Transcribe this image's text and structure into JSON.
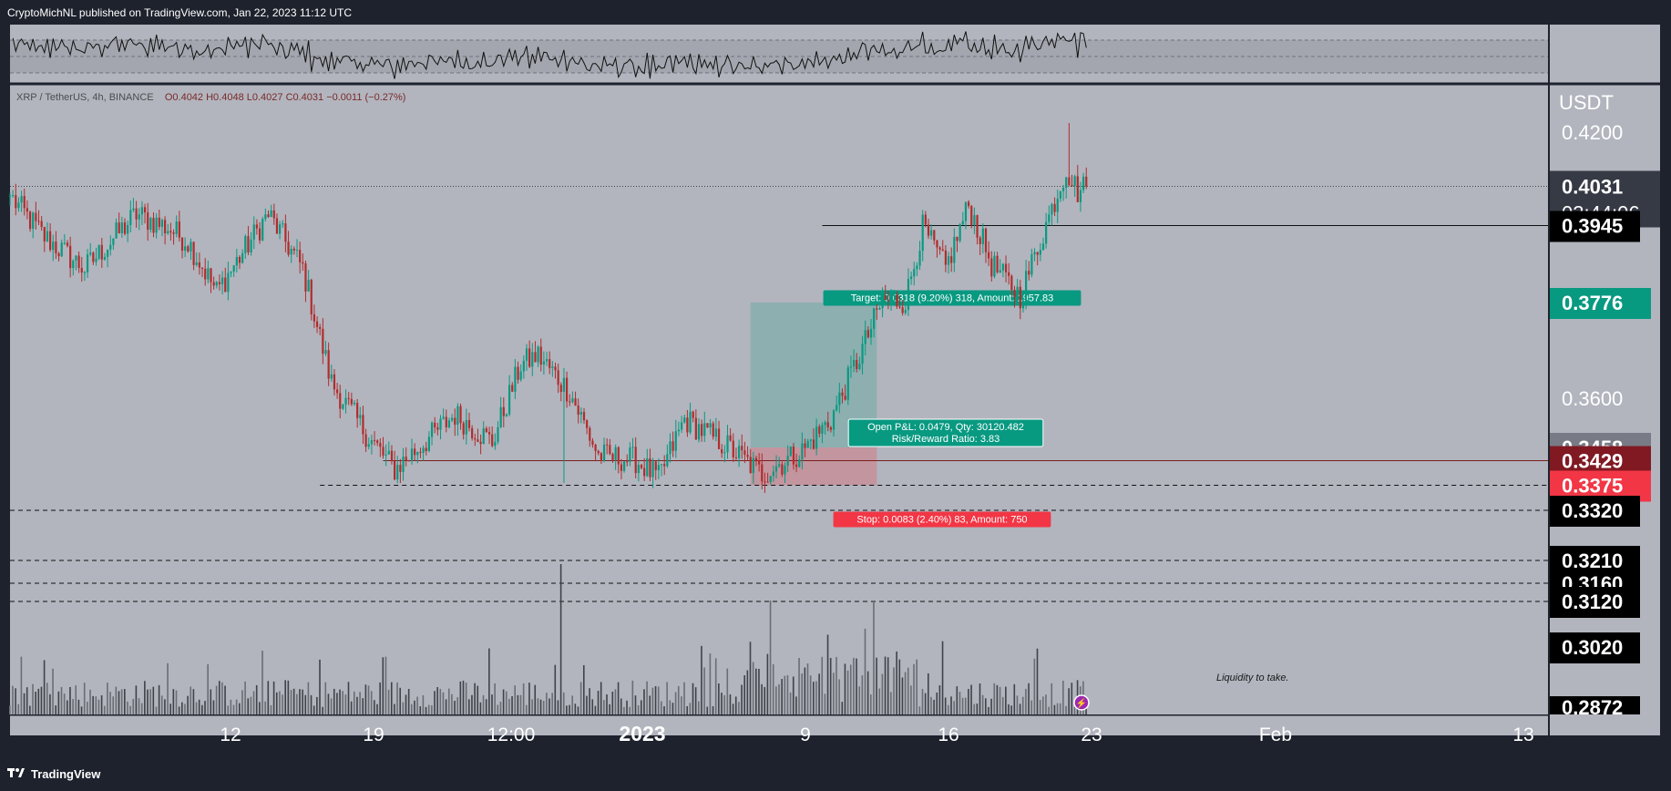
{
  "header": {
    "published": "CryptoMichNL published on TradingView.com, Jan 22, 2023 11:12 UTC"
  },
  "legend": {
    "symbol": "XRP / TetherUS, 4h, BINANCE",
    "ohlc": "O0.4042 H0.4048 L0.4027 C0.4031 −0.0011 (−0.27%)"
  },
  "footer": {
    "brand": "TradingView"
  },
  "colors": {
    "up": "#089981",
    "down": "#b12c2c",
    "bg_pane": "#b2b5be",
    "bg_frame": "#1e222d",
    "target": "#089981",
    "stop": "#f23645",
    "volume": "#4a4d55"
  },
  "chart_data": {
    "type": "candlestick",
    "price_unit": "USDT",
    "ylim": [
      0.2872,
      0.4275
    ],
    "x_tick_labels": [
      "12",
      "19",
      "12:00",
      "2023",
      "9",
      "16",
      "23",
      "Feb",
      "13"
    ],
    "price_tick_labels": [
      "0.4200",
      "0.3600"
    ],
    "current_price": "0.4031",
    "countdown": "03:44:06",
    "price_labels": [
      {
        "value": 0.4031,
        "text": "0.4031",
        "style": "current"
      },
      {
        "value": 0.3945,
        "text": "0.3945",
        "style": "black"
      },
      {
        "value": 0.3776,
        "text": "0.3776",
        "style": "green"
      },
      {
        "value": 0.3458,
        "text": "0.3458",
        "style": "grey"
      },
      {
        "value": 0.3429,
        "text": "0.3429",
        "style": "darkred"
      },
      {
        "value": 0.3375,
        "text": "0.3375",
        "style": "red"
      },
      {
        "value": 0.332,
        "text": "0.3320",
        "style": "black"
      },
      {
        "value": 0.321,
        "text": "0.3210",
        "style": "black"
      },
      {
        "value": 0.316,
        "text": "0.3160",
        "style": "black"
      },
      {
        "value": 0.312,
        "text": "0.3120",
        "style": "black"
      },
      {
        "value": 0.302,
        "text": "0.3020",
        "style": "black"
      },
      {
        "value": 0.2872,
        "text": "0.2872",
        "style": "black"
      }
    ],
    "horizontal_levels": [
      {
        "value": 0.3945,
        "style": "solid"
      },
      {
        "value": 0.3429,
        "style": "solid-red"
      },
      {
        "value": 0.3375,
        "style": "dashed"
      },
      {
        "value": 0.332,
        "style": "dashed"
      },
      {
        "value": 0.321,
        "style": "dashed"
      },
      {
        "value": 0.316,
        "style": "dashed"
      },
      {
        "value": 0.312,
        "style": "dashed"
      }
    ],
    "position": {
      "entry": 0.3458,
      "target": 0.3776,
      "stop": 0.3375,
      "target_label": "Target: 0.0318 (9.20%) 318, Amount: 1957.83",
      "pnl_label": "Open P&L: 0.0479, Qty: 30120.482",
      "rr_label": "Risk/Reward Ratio: 3.83",
      "stop_label": "Stop: 0.0083 (2.40%) 83, Amount: 750"
    },
    "annotation": "Liquidity to take.",
    "anchors": [
      {
        "bar": 0,
        "price": 0.401
      },
      {
        "bar": 12,
        "price": 0.392
      },
      {
        "bar": 26,
        "price": 0.385
      },
      {
        "bar": 44,
        "price": 0.397
      },
      {
        "bar": 55,
        "price": 0.394
      },
      {
        "bar": 62,
        "price": 0.391
      },
      {
        "bar": 72,
        "price": 0.38
      },
      {
        "bar": 90,
        "price": 0.397
      },
      {
        "bar": 102,
        "price": 0.385
      },
      {
        "bar": 112,
        "price": 0.36
      },
      {
        "bar": 125,
        "price": 0.348
      },
      {
        "bar": 134,
        "price": 0.341
      },
      {
        "bar": 155,
        "price": 0.353
      },
      {
        "bar": 168,
        "price": 0.347
      },
      {
        "bar": 178,
        "price": 0.364
      },
      {
        "bar": 184,
        "price": 0.366
      },
      {
        "bar": 195,
        "price": 0.358
      },
      {
        "bar": 205,
        "price": 0.344
      },
      {
        "bar": 218,
        "price": 0.343
      },
      {
        "bar": 226,
        "price": 0.339
      },
      {
        "bar": 235,
        "price": 0.352
      },
      {
        "bar": 250,
        "price": 0.346
      },
      {
        "bar": 262,
        "price": 0.34
      },
      {
        "bar": 276,
        "price": 0.345
      },
      {
        "bar": 286,
        "price": 0.352
      },
      {
        "bar": 296,
        "price": 0.366
      },
      {
        "bar": 304,
        "price": 0.378
      },
      {
        "bar": 312,
        "price": 0.378
      },
      {
        "bar": 318,
        "price": 0.394
      },
      {
        "bar": 326,
        "price": 0.385
      },
      {
        "bar": 334,
        "price": 0.399
      },
      {
        "bar": 342,
        "price": 0.386
      },
      {
        "bar": 352,
        "price": 0.379
      },
      {
        "bar": 360,
        "price": 0.393
      },
      {
        "bar": 368,
        "price": 0.407
      },
      {
        "bar": 372,
        "price": 0.402
      },
      {
        "bar": 375,
        "price": 0.4031
      }
    ]
  }
}
